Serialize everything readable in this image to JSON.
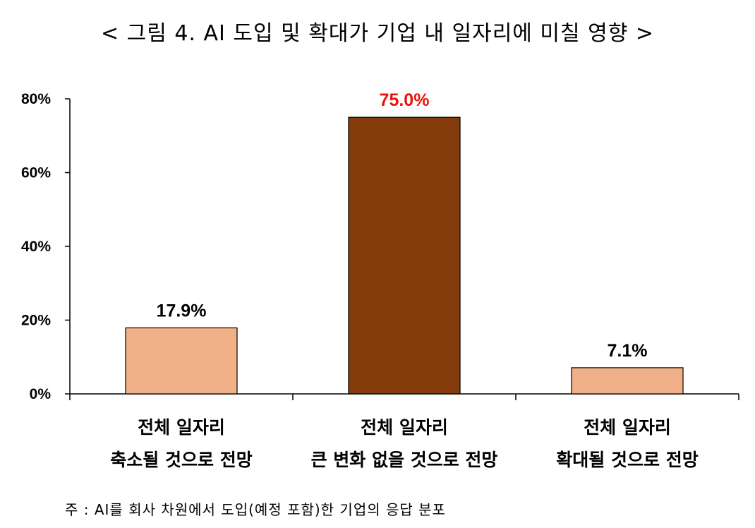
{
  "chart_data": {
    "type": "bar",
    "title": "< 그림 4. AI 도입 및 확대가 기업 내 일자리에 미칠 영향 >",
    "categories": [
      [
        "전체 일자리",
        "축소될 것으로 전망"
      ],
      [
        "전체 일자리",
        "큰 변화 없을 것으로 전망"
      ],
      [
        "전체 일자리",
        "확대될 것으로 전망"
      ]
    ],
    "values": [
      17.9,
      75.0,
      7.1
    ],
    "value_labels": [
      "17.9%",
      "75.0%",
      "7.1%"
    ],
    "bar_colors": [
      "#F0B088",
      "#843C0C",
      "#F0B088"
    ],
    "value_label_colors": [
      "#000000",
      "#E8140C",
      "#000000"
    ],
    "ylim": [
      0,
      80
    ],
    "yticks": [
      {
        "value": 0,
        "label": "0%"
      },
      {
        "value": 20,
        "label": "20%"
      },
      {
        "value": 40,
        "label": "40%"
      },
      {
        "value": 60,
        "label": "60%"
      },
      {
        "value": 80,
        "label": "80%"
      }
    ],
    "xlabel": "",
    "ylabel": "",
    "grid": false,
    "legend": "none"
  },
  "note": "주 : AI를 회사 차원에서 도입(예정 포함)한 기업의 응답 분포"
}
